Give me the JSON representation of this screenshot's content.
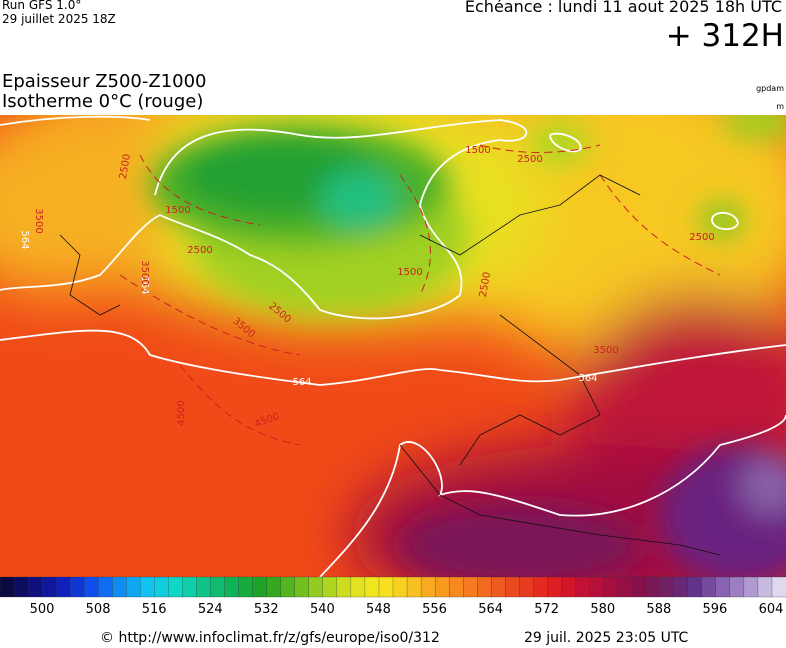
{
  "header": {
    "run": "Run GFS 1.0°",
    "run_date": "29 juillet 2025 18Z",
    "valid": "Echéance : lundi 11 aout 2025 18h UTC",
    "lead": "+ 312H"
  },
  "titles": [
    "Epaisseur Z500-Z1000",
    "Isotherme 0°C (rouge)"
  ],
  "units": [
    "gpdam",
    "m"
  ],
  "map": {
    "contour_labels": [
      "564",
      "564",
      "564",
      "564",
      "2500",
      "2500",
      "2500",
      "2500",
      "2500",
      "2500",
      "1500",
      "1500",
      "1500",
      "3500",
      "3500",
      "3500",
      "3500",
      "4500",
      "4500"
    ]
  },
  "colorbar": {
    "ticks": [
      500,
      508,
      516,
      524,
      532,
      540,
      548,
      556,
      564,
      572,
      580,
      588,
      596,
      604
    ]
  },
  "footer": {
    "url": "© http://www.infoclimat.fr/z/gfs/europe/iso0/312",
    "timestamp": "29 juil. 2025 23:05 UTC"
  }
}
